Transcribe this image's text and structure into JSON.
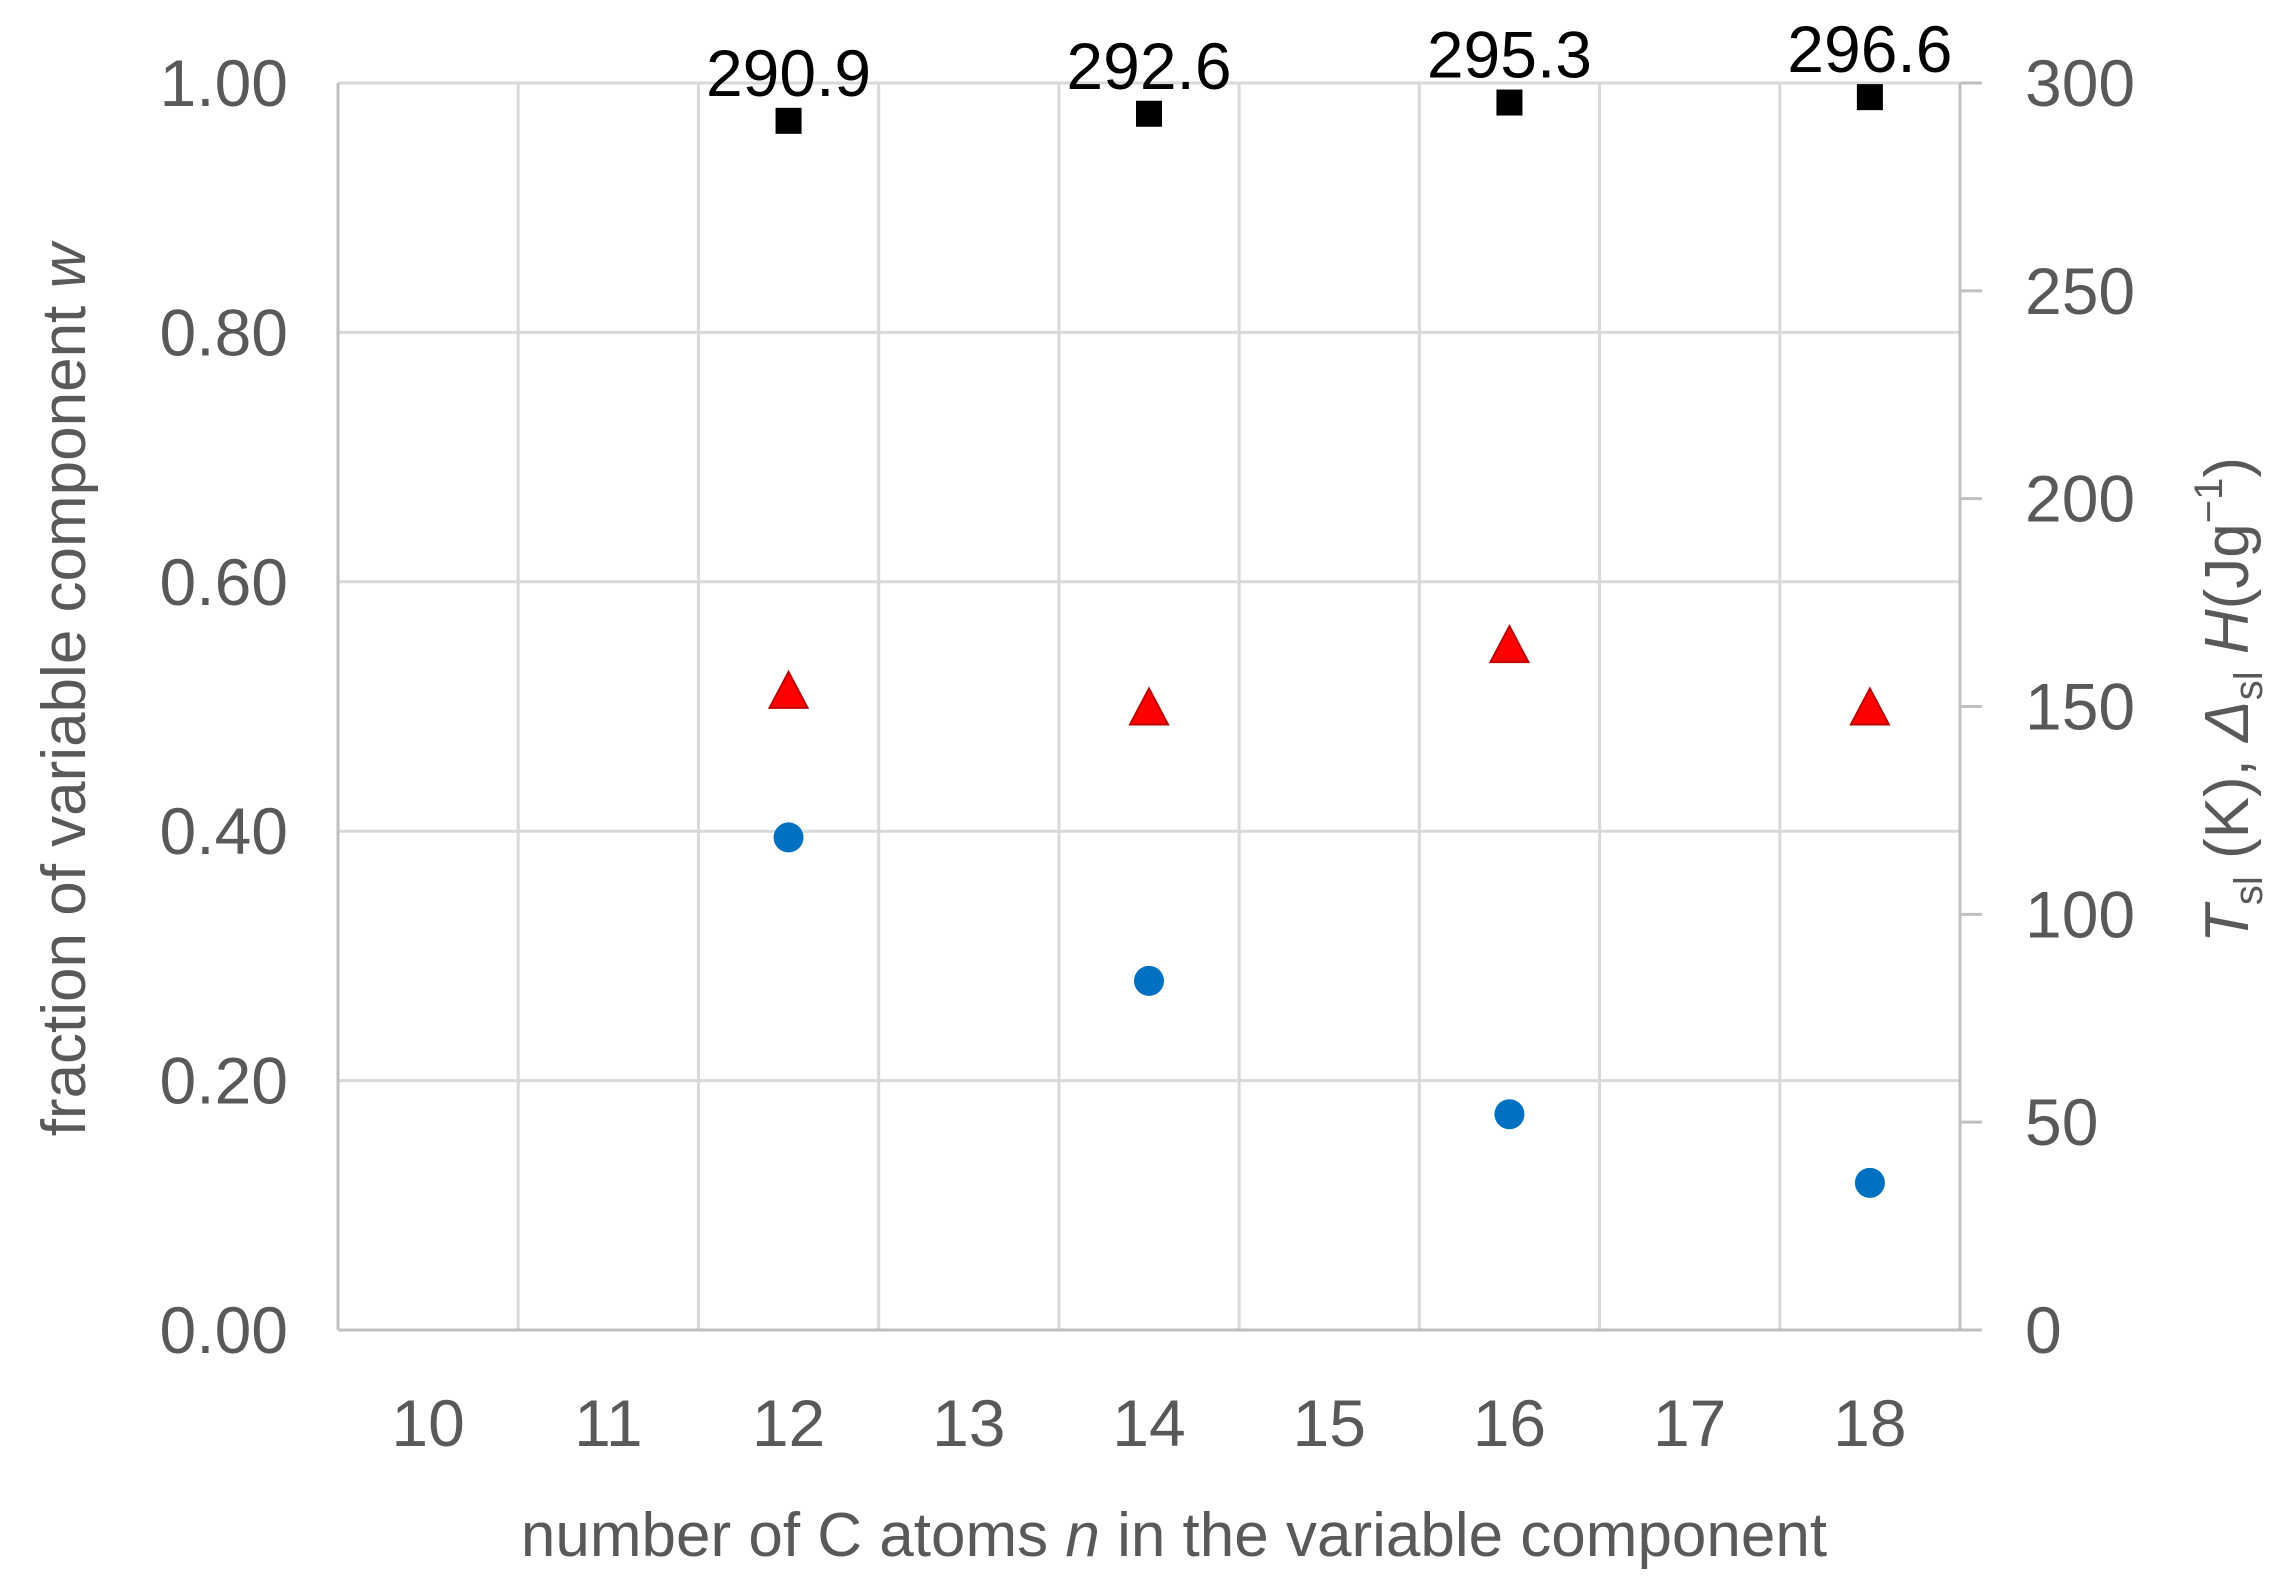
{
  "chart_data": {
    "type": "scatter",
    "xlabel": {
      "pre": "number of C atoms ",
      "italic": "n",
      "post": " in the variable component"
    },
    "ylabel_left": {
      "pre": "fraction of variable component ",
      "italic": "w"
    },
    "ylabel_right": {
      "T": "T",
      "sub1": "sl",
      "mid": " (K), ",
      "delta": "Δ",
      "sub2": "sl",
      "H": " H",
      "unit": "(Jg",
      "sup": "−1",
      "close": ")"
    },
    "x_ticks": [
      "10",
      "11",
      "12",
      "13",
      "14",
      "15",
      "16",
      "17",
      "18"
    ],
    "y_left_ticks": [
      "0.00",
      "0.20",
      "0.40",
      "0.60",
      "0.80",
      "1.00"
    ],
    "y_right_ticks": [
      "0",
      "50",
      "100",
      "150",
      "200",
      "250",
      "300"
    ],
    "xlim": [
      9.5,
      18.5
    ],
    "ylim_left": [
      0,
      1
    ],
    "ylim_right": [
      0,
      300
    ],
    "grid": true,
    "series": [
      {
        "axis": "left",
        "marker": "circle",
        "color": "#0070c0",
        "points": [
          [
            12,
            0.395
          ],
          [
            14,
            0.28
          ],
          [
            16,
            0.173
          ],
          [
            18,
            0.118
          ]
        ]
      },
      {
        "axis": "right",
        "marker": "triangle",
        "color": "#ff0000",
        "points": [
          [
            12,
            154
          ],
          [
            14,
            150
          ],
          [
            16,
            165
          ],
          [
            18,
            150
          ]
        ]
      },
      {
        "axis": "right",
        "marker": "square",
        "color": "#000000",
        "points": [
          [
            12,
            290.9
          ],
          [
            14,
            292.6
          ],
          [
            16,
            295.3
          ],
          [
            18,
            296.6
          ]
        ],
        "labels": [
          "290.9",
          "292.6",
          "295.3",
          "296.6"
        ]
      }
    ]
  }
}
